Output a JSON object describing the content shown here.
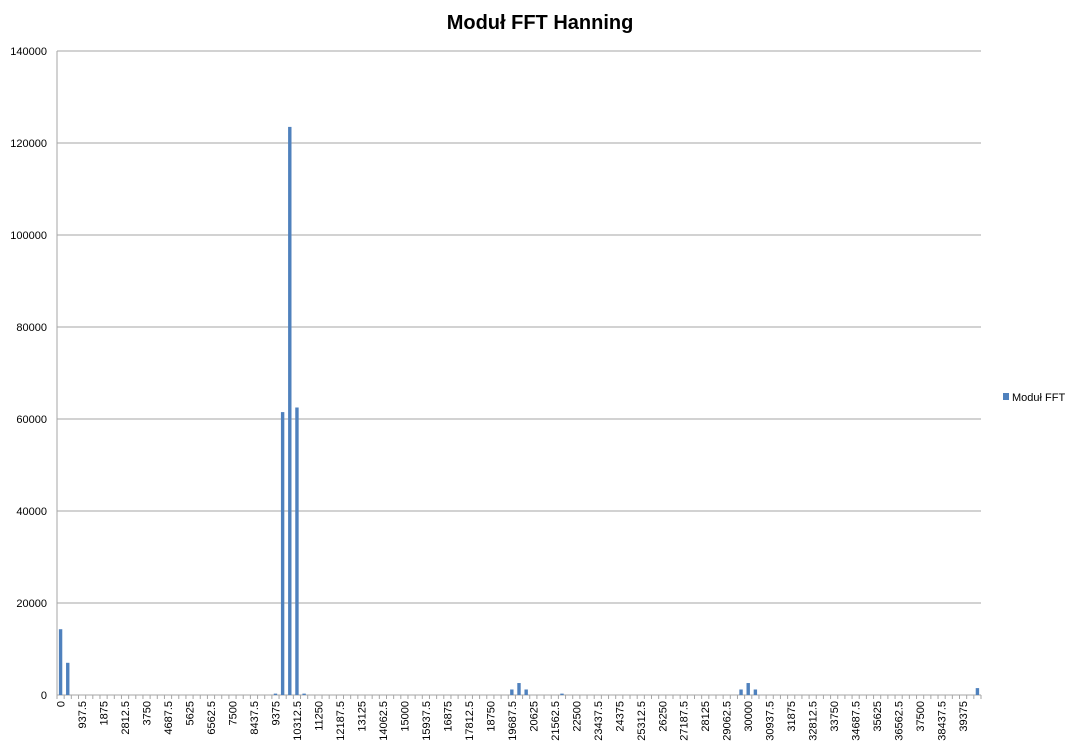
{
  "chart_data": {
    "type": "bar",
    "title": "Moduł FFT Hanning",
    "categories": [
      "0",
      null,
      null,
      "937.5",
      null,
      null,
      "1875",
      null,
      null,
      "2812.5",
      null,
      null,
      "3750",
      null,
      null,
      "4687.5",
      null,
      null,
      "5625",
      null,
      null,
      "6562.5",
      null,
      null,
      "7500",
      null,
      null,
      "8437.5",
      null,
      null,
      "9375",
      null,
      null,
      "10312.5",
      null,
      null,
      "11250",
      null,
      null,
      "12187.5",
      null,
      null,
      "13125",
      null,
      null,
      "14062.5",
      null,
      null,
      "15000",
      null,
      null,
      "15937.5",
      null,
      null,
      "16875",
      null,
      null,
      "17812.5",
      null,
      null,
      "18750",
      null,
      null,
      "19687.5",
      null,
      null,
      "20625",
      null,
      null,
      "21562.5",
      null,
      null,
      "22500",
      null,
      null,
      "23437.5",
      null,
      null,
      "24375",
      null,
      null,
      "25312.5",
      null,
      null,
      "26250",
      null,
      null,
      "27187.5",
      null,
      null,
      "28125",
      null,
      null,
      "29062.5",
      null,
      null,
      "30000",
      null,
      null,
      "30937.5",
      null,
      null,
      "31875",
      null,
      null,
      "32812.5",
      null,
      null,
      "33750",
      null,
      null,
      "34687.5",
      null,
      null,
      "35625",
      null,
      null,
      "36562.5",
      null,
      null,
      "37500",
      null,
      null,
      "38437.5",
      null,
      null,
      "39375",
      null,
      null
    ],
    "series": [
      {
        "name": "Moduł FFT",
        "color": "#4f81bd",
        "values": [
          14300,
          7000,
          0,
          0,
          0,
          0,
          0,
          0,
          0,
          0,
          0,
          0,
          0,
          0,
          0,
          0,
          0,
          0,
          0,
          0,
          0,
          0,
          0,
          0,
          0,
          0,
          0,
          0,
          0,
          0,
          300,
          61500,
          123500,
          62500,
          300,
          0,
          0,
          0,
          0,
          0,
          0,
          0,
          0,
          0,
          0,
          0,
          0,
          0,
          0,
          0,
          0,
          0,
          0,
          0,
          0,
          0,
          0,
          0,
          0,
          0,
          0,
          0,
          0,
          1200,
          2600,
          1200,
          0,
          0,
          0,
          0,
          300,
          0,
          0,
          0,
          0,
          0,
          0,
          0,
          0,
          0,
          0,
          0,
          0,
          0,
          0,
          0,
          0,
          0,
          0,
          0,
          0,
          0,
          0,
          0,
          0,
          1200,
          2600,
          1200,
          0,
          0,
          0,
          0,
          0,
          0,
          0,
          0,
          0,
          0,
          0,
          0,
          0,
          0,
          0,
          0,
          0,
          0,
          0,
          0,
          0,
          0,
          0,
          0,
          0,
          0,
          0,
          0,
          0,
          0,
          1500
        ]
      }
    ],
    "ylim": [
      0,
      140000
    ],
    "yticks": [
      0,
      20000,
      40000,
      60000,
      80000,
      100000,
      120000,
      140000
    ],
    "grid": true,
    "legend": "right"
  }
}
